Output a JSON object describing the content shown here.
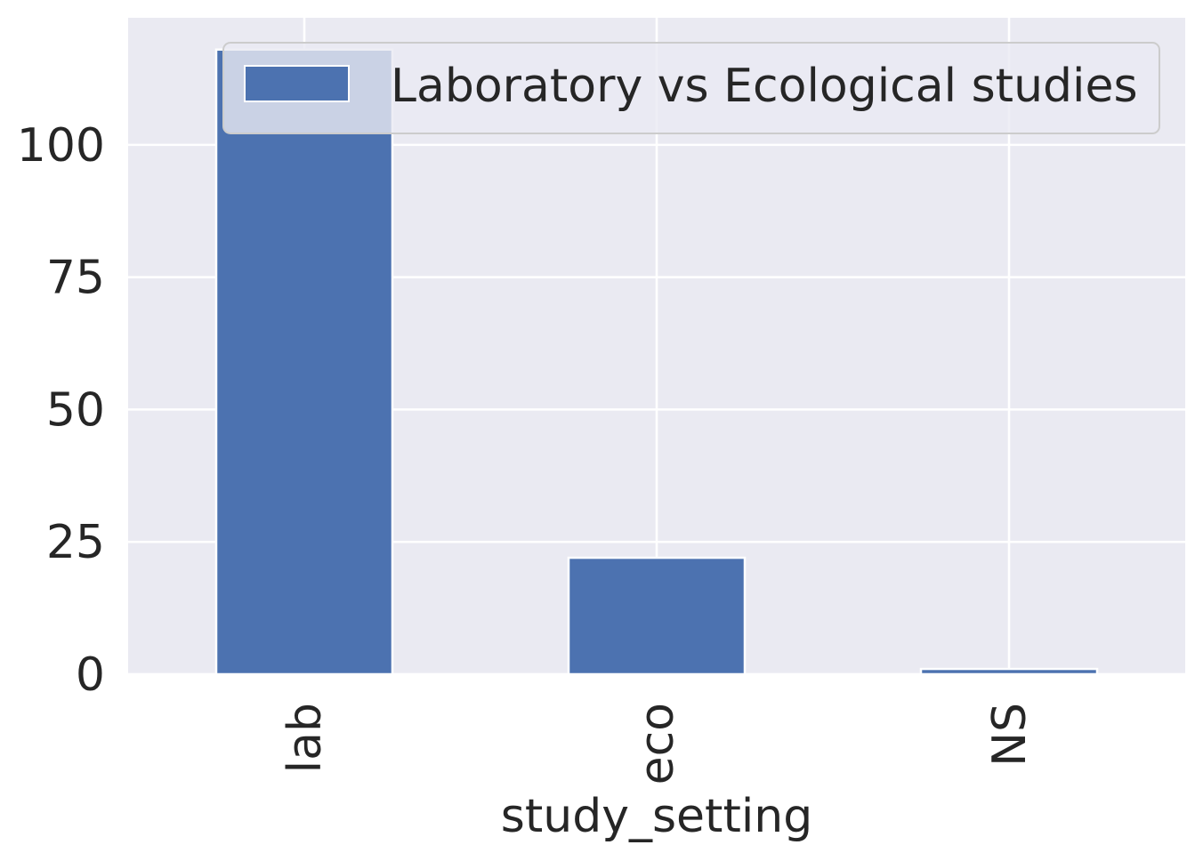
{
  "chart_data": {
    "type": "bar",
    "categories": [
      "lab",
      "eco",
      "NS"
    ],
    "series": [
      {
        "name": "Laboratory vs Ecological studies",
        "values": [
          118,
          22,
          1
        ]
      }
    ],
    "title": "",
    "xlabel": "study_setting",
    "ylabel": "",
    "ylim": [
      0,
      124
    ],
    "yticks": [
      0,
      25,
      50,
      75,
      100
    ],
    "ytick_labels": [
      "0",
      "25",
      "50",
      "75",
      "100"
    ],
    "grid": true,
    "legend": "top-right",
    "colors": {
      "bar": "#4c72b0",
      "background": "#eaeaf2",
      "grid": "#ffffff",
      "text": "#262626"
    }
  }
}
